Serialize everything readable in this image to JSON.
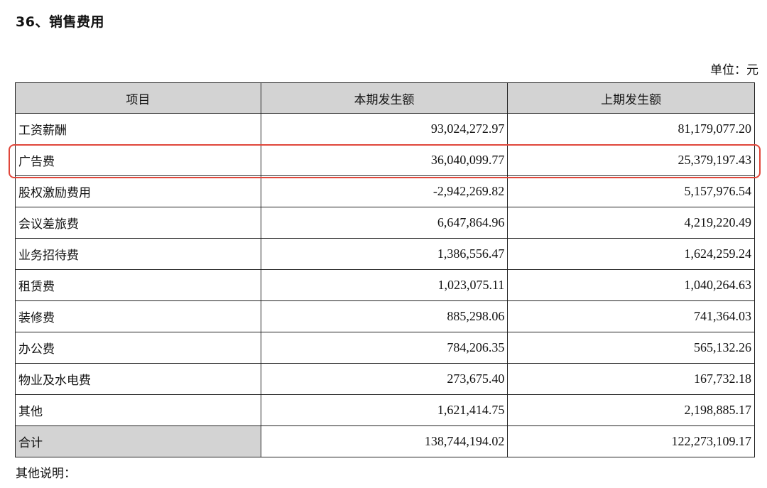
{
  "section": {
    "title": "36、销售费用",
    "unit": "单位：元",
    "notes_label": "其他说明："
  },
  "table": {
    "headers": {
      "item": "项目",
      "current": "本期发生额",
      "prior": "上期发生额"
    },
    "rows": [
      {
        "item": "工资薪酬",
        "current": "93,024,272.97",
        "prior": "81,179,077.20"
      },
      {
        "item": "广告费",
        "current": "36,040,099.77",
        "prior": "25,379,197.43"
      },
      {
        "item": "股权激励费用",
        "current": "-2,942,269.82",
        "prior": "5,157,976.54"
      },
      {
        "item": "会议差旅费",
        "current": "6,647,864.96",
        "prior": "4,219,220.49"
      },
      {
        "item": "业务招待费",
        "current": "1,386,556.47",
        "prior": "1,624,259.24"
      },
      {
        "item": "租赁费",
        "current": "1,023,075.11",
        "prior": "1,040,264.63"
      },
      {
        "item": "装修费",
        "current": "885,298.06",
        "prior": "741,364.03"
      },
      {
        "item": "办公费",
        "current": "784,206.35",
        "prior": "565,132.26"
      },
      {
        "item": "物业及水电费",
        "current": "273,675.40",
        "prior": "167,732.18"
      },
      {
        "item": "其他",
        "current": "1,621,414.75",
        "prior": "2,198,885.17"
      }
    ],
    "total": {
      "item": "合计",
      "current": "138,744,194.02",
      "prior": "122,273,109.17"
    }
  },
  "highlight": {
    "row_item": "广告费",
    "color": "#e0463a"
  },
  "colors": {
    "header_bg": "#d3d3d3",
    "border": "#222222",
    "text": "#111111"
  }
}
